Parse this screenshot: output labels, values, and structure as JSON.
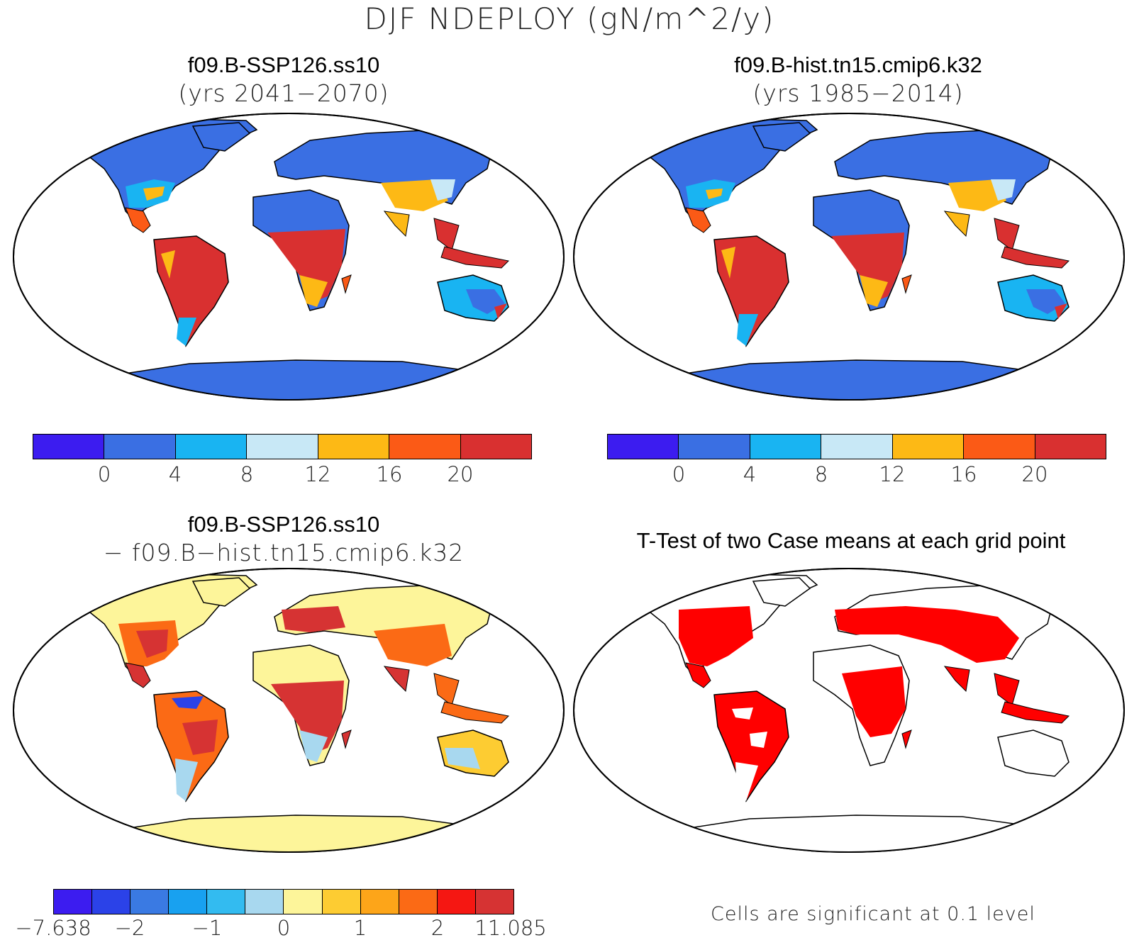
{
  "figure": {
    "title": "DJF NDEPLOY (gN/m^2/y)"
  },
  "panels": [
    {
      "title": "f09.B-SSP126.ss10",
      "subtitle": "(yrs 2041−2070)",
      "colorbar": {
        "colors": [
          "#3c1cf0",
          "#3a6fe3",
          "#19b4f2",
          "#c8e8f6",
          "#fdb915",
          "#fb5a16",
          "#d93030"
        ],
        "ticks": [
          "0",
          "4",
          "8",
          "12",
          "16",
          "20"
        ]
      }
    },
    {
      "title": "f09.B-hist.tn15.cmip6.k32",
      "subtitle": "(yrs 1985−2014)",
      "colorbar": {
        "colors": [
          "#3c1cf0",
          "#3a6fe3",
          "#19b4f2",
          "#c8e8f6",
          "#fdb915",
          "#fb5a16",
          "#d93030"
        ],
        "ticks": [
          "0",
          "4",
          "8",
          "12",
          "16",
          "20"
        ]
      }
    },
    {
      "title": "f09.B-SSP126.ss10",
      "subtitle": "− f09.B−hist.tn15.cmip6.k32",
      "colorbar": {
        "colors": [
          "#3c1cf0",
          "#2b42e8",
          "#3a7ae3",
          "#18a1f0",
          "#33bbf0",
          "#a8d8ef",
          "#fdf59a",
          "#fdcc32",
          "#fda519",
          "#fb6a15",
          "#f51712",
          "#d63333"
        ],
        "ticks": [
          "−7.638",
          "−2",
          "−1",
          "0",
          "1",
          "2",
          "11.085"
        ]
      }
    },
    {
      "title": "T-Test of two Case means at each grid point",
      "note": "Cells are significant at 0.1 level"
    }
  ],
  "map_colors": {
    "ocean": "#ffffff",
    "land_low": "#3a6fe3",
    "land_high": "#d93030",
    "diff_base": "#fdf59a",
    "diff_high": "#d63333",
    "signif": "#ff0000"
  }
}
